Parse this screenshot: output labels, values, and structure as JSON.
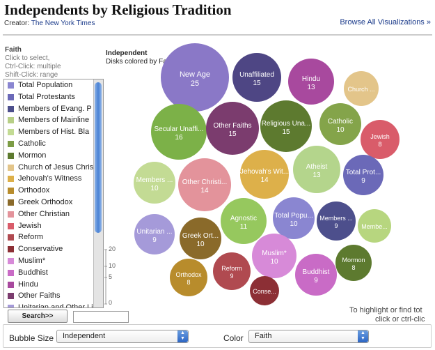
{
  "header": {
    "title": "Independents by Religious Tradition",
    "creator_label": "Creator:",
    "creator_name": "The New York Times",
    "browse_link": "Browse All Visualizations »"
  },
  "faith_panel": {
    "heading": "Faith",
    "help_lines": [
      "Click to select,",
      "Ctrl-Click: multiple",
      "Shift-Click: range"
    ],
    "items": [
      {
        "label": "Total Population",
        "color": "#8a86d1"
      },
      {
        "label": "Total Protestants",
        "color": "#6b69b8"
      },
      {
        "label": "Members of Evang. P",
        "color": "#4d4f8c"
      },
      {
        "label": "Members of Mainline",
        "color": "#b7cf86"
      },
      {
        "label": "Members of Hist. Bla",
        "color": "#c3db94"
      },
      {
        "label": "Catholic",
        "color": "#7c9c45"
      },
      {
        "label": "Mormon",
        "color": "#5d7a2f"
      },
      {
        "label": "Church of Jesus Chris",
        "color": "#e3c58a"
      },
      {
        "label": "Jehovah's Witness",
        "color": "#ddb04a"
      },
      {
        "label": "Orthodox",
        "color": "#b88c2c"
      },
      {
        "label": "Greek Orthodox",
        "color": "#8a6a2a"
      },
      {
        "label": "Other Christian",
        "color": "#e3939b"
      },
      {
        "label": "Jewish",
        "color": "#d95c6a"
      },
      {
        "label": "Reform",
        "color": "#b04a50"
      },
      {
        "label": "Conservative",
        "color": "#8c2f35"
      },
      {
        "label": "Muslim*",
        "color": "#d78ad8"
      },
      {
        "label": "Buddhist",
        "color": "#c96bc6"
      },
      {
        "label": "Hindu",
        "color": "#a8499e"
      },
      {
        "label": "Other Faiths",
        "color": "#7b3c6e"
      },
      {
        "label": "Unitarian and Other Li",
        "color": "#a59ad9"
      }
    ]
  },
  "size_scale": {
    "ticks": [
      "20",
      "10",
      "5",
      "0"
    ]
  },
  "search": {
    "button_label": "Search>>",
    "input_value": ""
  },
  "viz": {
    "header_bold": "Independent",
    "header_sub": "Disks colored by Faith",
    "bubbles": [
      {
        "label": "New Age",
        "value": "25",
        "color": "#8a78c7"
      },
      {
        "label": "Unaffiliated",
        "value": "15",
        "color": "#4e4684"
      },
      {
        "label": "Hindu",
        "value": "13",
        "color": "#a8499e"
      },
      {
        "label": "Church ...",
        "value": "",
        "color": "#e3c58a"
      },
      {
        "label": "Secular Unaffi...",
        "value": "16",
        "color": "#7cb148"
      },
      {
        "label": "Other Faiths",
        "value": "15",
        "color": "#7b3c6e"
      },
      {
        "label": "Religious Una...",
        "value": "15",
        "color": "#5d7a2f"
      },
      {
        "label": "Catholic",
        "value": "10",
        "color": "#84a44a"
      },
      {
        "label": "Jewish",
        "value": "8",
        "color": "#d95c6a"
      },
      {
        "label": "Members ...",
        "value": "10",
        "color": "#c3db94"
      },
      {
        "label": "Other Christi...",
        "value": "14",
        "color": "#e3939b"
      },
      {
        "label": "Jehovah's Wit...",
        "value": "14",
        "color": "#ddb04a"
      },
      {
        "label": "Atheist",
        "value": "13",
        "color": "#b4d58c"
      },
      {
        "label": "Total Prot...",
        "value": "9",
        "color": "#6b69b8"
      },
      {
        "label": "Unitarian ...",
        "value": "9",
        "color": "#a59ad9"
      },
      {
        "label": "Greek Ort...",
        "value": "10",
        "color": "#8a6a2a"
      },
      {
        "label": "Agnostic",
        "value": "11",
        "color": "#96c85e"
      },
      {
        "label": "Total Popu...",
        "value": "10",
        "color": "#8a86d1"
      },
      {
        "label": "Members ...",
        "value": "9",
        "color": "#4d4f8c"
      },
      {
        "label": "Membe...",
        "value": "",
        "color": "#b7d67f"
      },
      {
        "label": "Muslim*",
        "value": "10",
        "color": "#d78ad8"
      },
      {
        "label": "Orthodox",
        "value": "8",
        "color": "#b88c2c"
      },
      {
        "label": "Reform",
        "value": "9",
        "color": "#b04a50"
      },
      {
        "label": "Mormon",
        "value": "8",
        "color": "#5d7a2f"
      },
      {
        "label": "Buddhist",
        "value": "9",
        "color": "#c96bc6"
      },
      {
        "label": "Conse...",
        "value": "",
        "color": "#8c2f35"
      }
    ],
    "hint_lines": [
      "To highlight or find tot",
      "click or ctrl-clic"
    ]
  },
  "controls": {
    "bubble_size_label": "Bubble Size",
    "bubble_size_value": "Independent",
    "color_label": "Color",
    "color_value": "Faith"
  }
}
